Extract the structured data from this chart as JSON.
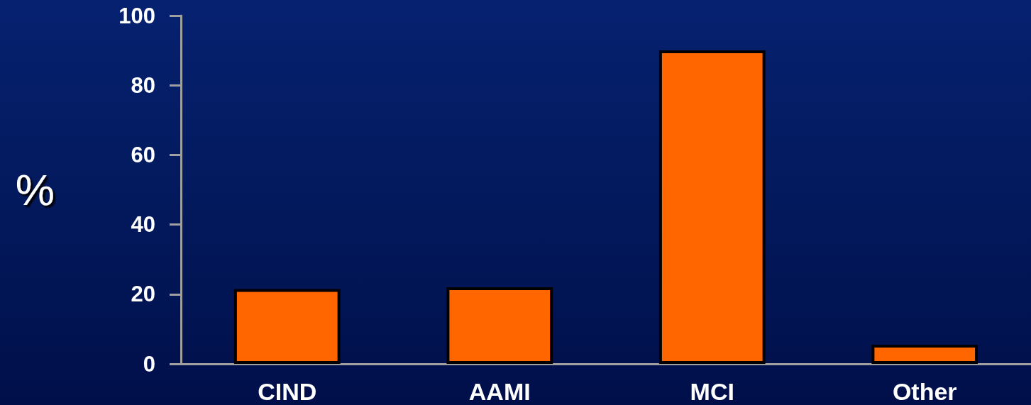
{
  "chart_data": {
    "type": "bar",
    "ylabel": "%",
    "categories": [
      "CIND",
      "AAMI",
      "MCI",
      "Other"
    ],
    "values": [
      21.5,
      22,
      90,
      5.5
    ],
    "color": "#ff6600",
    "ylim": [
      0,
      100
    ],
    "yticks": [
      0,
      20,
      40,
      60,
      80,
      100
    ],
    "grid": false
  }
}
